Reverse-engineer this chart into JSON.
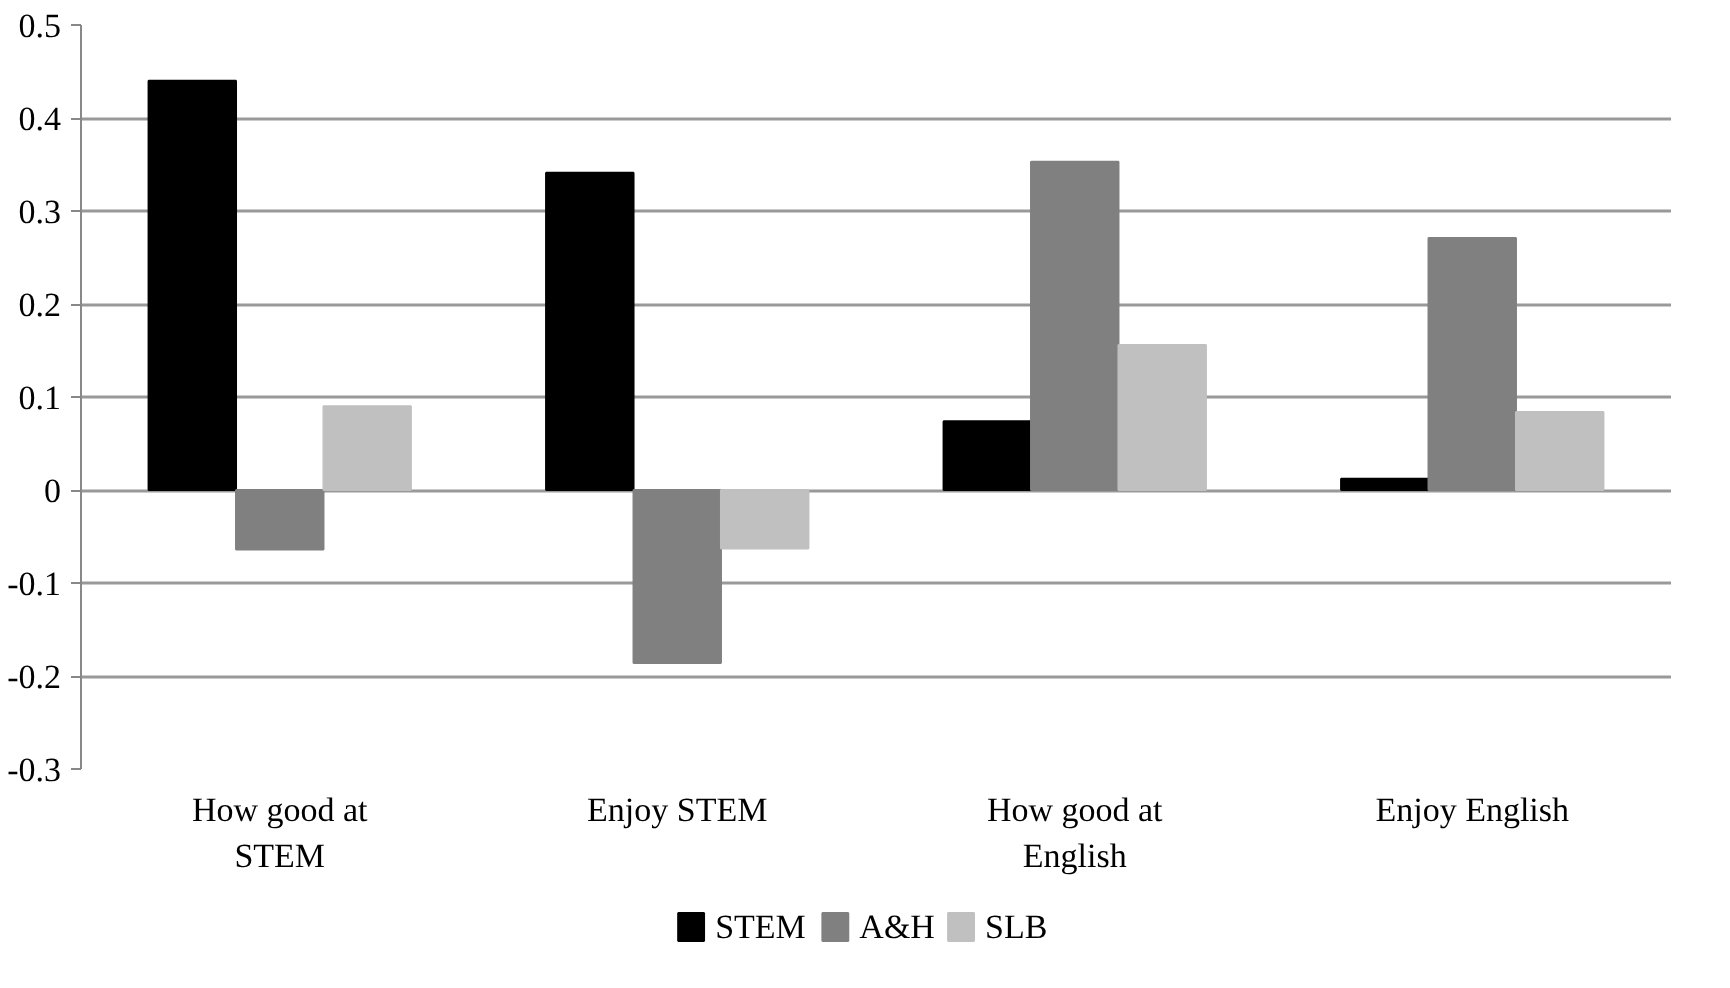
{
  "chart_data": {
    "type": "bar",
    "categories": [
      "How good at\nSTEM",
      "Enjoy STEM",
      "How good at\nEnglish",
      "Enjoy English"
    ],
    "series": [
      {
        "name": "STEM",
        "color": "#000000",
        "values": [
          0.44,
          0.341,
          0.074,
          0.012
        ]
      },
      {
        "name": "A&H",
        "color": "#808080",
        "values": [
          -0.064,
          -0.186,
          0.353,
          0.271
        ]
      },
      {
        "name": "SLB",
        "color": "#c0c0c0",
        "values": [
          0.09,
          -0.063,
          0.156,
          0.084
        ]
      }
    ],
    "ylim": [
      -0.3,
      0.5
    ],
    "yticks": [
      -0.3,
      -0.2,
      -0.1,
      0,
      0.1,
      0.2,
      0.3,
      0.4,
      0.5
    ],
    "grid": "y",
    "legend": "bottom"
  }
}
